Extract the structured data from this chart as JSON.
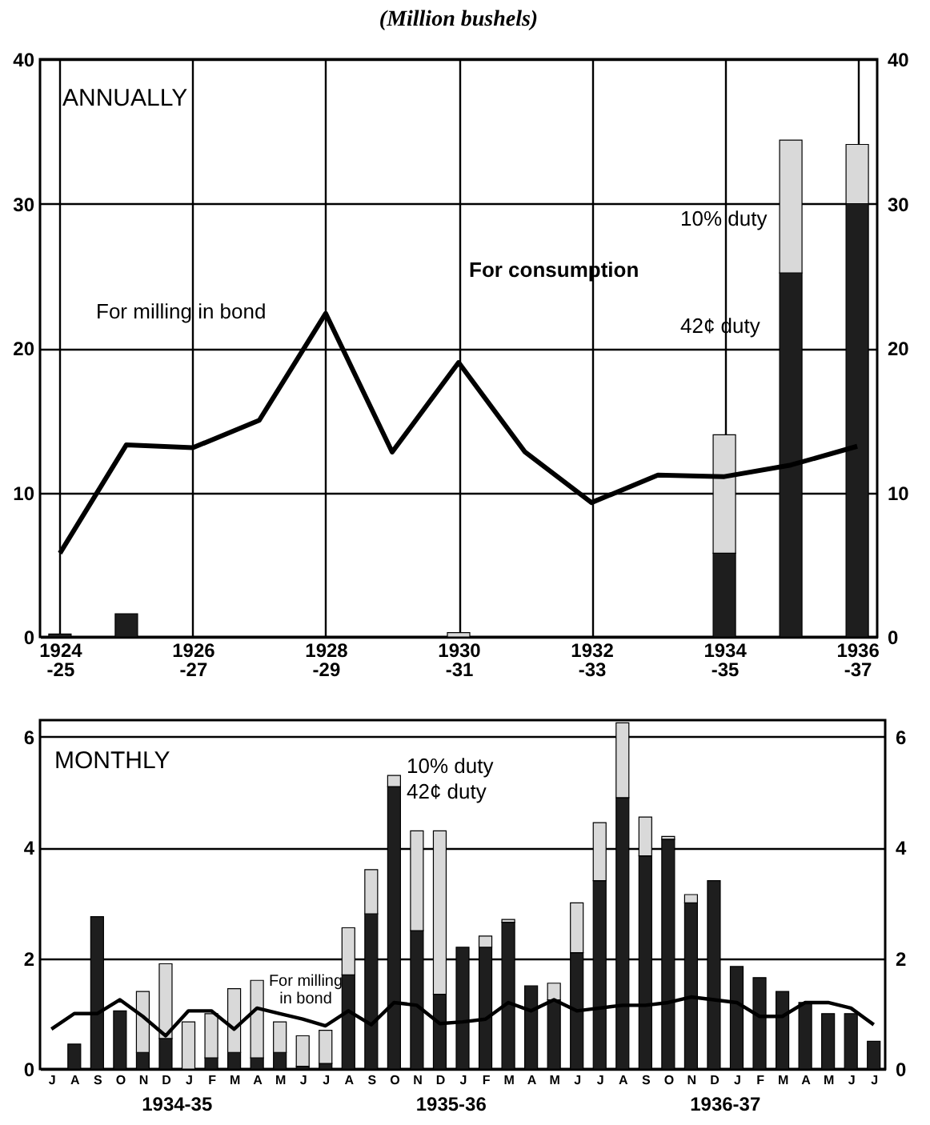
{
  "chart_data": [
    {
      "type": "bar",
      "title": "(Million bushels)",
      "stacked": true,
      "grid": true,
      "legend": false,
      "categories": [
        "1924\n-25",
        null,
        "1926\n-27",
        null,
        "1928\n-29",
        null,
        "1930\n-31",
        null,
        "1932\n-33",
        null,
        "1934\n-35",
        null,
        "1936\n-37"
      ],
      "series": [
        {
          "name": "42¢ duty",
          "color": "#1e1e1e",
          "values": [
            0.2,
            1.6,
            null,
            null,
            null,
            null,
            null,
            null,
            null,
            null,
            5.8,
            25.2,
            30.0
          ]
        },
        {
          "name": "10% duty",
          "color": "#d9d9d9",
          "values": [
            null,
            null,
            null,
            null,
            null,
            null,
            0.3,
            null,
            null,
            null,
            8.2,
            9.2,
            4.1
          ]
        },
        {
          "name": "For milling in bond",
          "type": "line",
          "color": "#000000",
          "values": [
            5.8,
            13.3,
            13.1,
            15.0,
            22.4,
            12.8,
            19.0,
            12.8,
            9.3,
            11.2,
            11.1,
            11.9,
            13.2
          ]
        }
      ],
      "ylim": [
        0,
        40
      ],
      "yticks": [
        0,
        10,
        20,
        30,
        40
      ],
      "y2lim": [
        0,
        40
      ],
      "y2ticks": [
        0,
        10,
        20,
        30,
        40
      ],
      "annotations": [
        "ANNUALLY",
        "For consumption"
      ]
    },
    {
      "type": "bar",
      "stacked": true,
      "grid": "y",
      "legend": false,
      "categories": [
        "J",
        "A",
        "S",
        "O",
        "N",
        "D",
        "J",
        "F",
        "M",
        "A",
        "M",
        "J",
        "J",
        "A",
        "S",
        "O",
        "N",
        "D",
        "J",
        "F",
        "M",
        "A",
        "M",
        "J",
        "J",
        "A",
        "S",
        "O",
        "N",
        "D",
        "J",
        "F",
        "M",
        "A",
        "M",
        "J",
        "J"
      ],
      "series": [
        {
          "name": "42¢ duty",
          "color": "#1e1e1e",
          "values": [
            null,
            0.45,
            2.75,
            1.05,
            0.3,
            0.55,
            null,
            0.2,
            0.3,
            0.2,
            0.3,
            0.05,
            0.1,
            1.7,
            2.8,
            5.1,
            2.5,
            1.35,
            2.2,
            2.2,
            2.65,
            1.5,
            1.25,
            2.1,
            3.4,
            4.9,
            3.85,
            4.15,
            3.0,
            3.4,
            1.85,
            1.65,
            1.4,
            1.2,
            1.0,
            1.0,
            0.5
          ]
        },
        {
          "name": "10% duty",
          "color": "#d9d9d9",
          "values": [
            null,
            null,
            null,
            null,
            1.1,
            1.35,
            0.85,
            0.8,
            1.15,
            1.4,
            0.55,
            0.55,
            0.6,
            0.85,
            0.8,
            0.2,
            1.8,
            2.95,
            null,
            0.2,
            0.05,
            null,
            0.3,
            0.9,
            1.05,
            1.35,
            0.7,
            0.05,
            0.15,
            null,
            null,
            null,
            null,
            null,
            null,
            null,
            null
          ]
        },
        {
          "name": "For milling\nin bond",
          "type": "line",
          "color": "#000000",
          "values": [
            0.72,
            1.0,
            1.0,
            1.25,
            0.95,
            0.6,
            1.05,
            1.05,
            0.72,
            1.1,
            1.0,
            0.9,
            0.78,
            1.05,
            0.8,
            1.2,
            1.15,
            0.82,
            0.85,
            0.9,
            1.2,
            1.05,
            1.25,
            1.05,
            1.1,
            1.15,
            1.15,
            1.2,
            1.3,
            1.25,
            1.2,
            0.95,
            0.95,
            1.2,
            1.2,
            1.1,
            0.8
          ]
        }
      ],
      "ylim": [
        0,
        6.3
      ],
      "yticks": [
        0,
        2,
        4,
        6
      ],
      "y2lim": [
        0,
        6.3
      ],
      "y2ticks": [
        0,
        2,
        4,
        6
      ],
      "annotations": [
        "MONTHLY",
        "1934-35",
        "1935-36",
        "1936-37"
      ]
    }
  ]
}
